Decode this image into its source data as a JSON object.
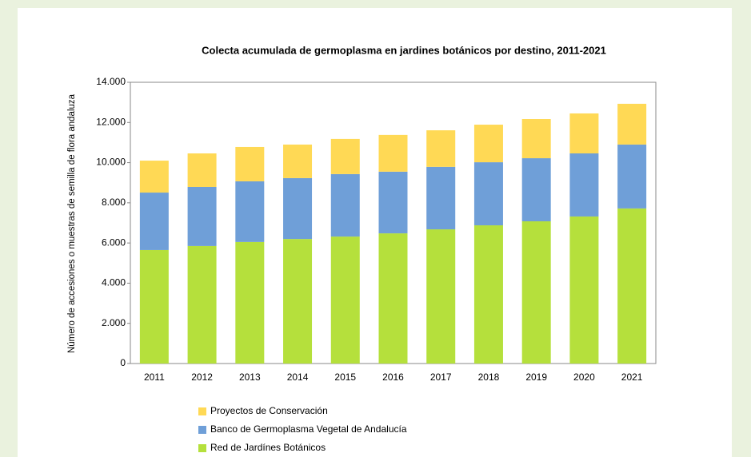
{
  "chart_data": {
    "type": "stacked-bar",
    "title": "Colecta acumulada de germoplasma en jardines botánicos por destino, 2011-2021",
    "y_label": "Número de accesiones o muestras de semilla de flora andaluza",
    "categories": [
      "2011",
      "2012",
      "2013",
      "2014",
      "2015",
      "2016",
      "2017",
      "2018",
      "2019",
      "2020",
      "2021"
    ],
    "series": [
      {
        "name": "Proyectos de Conservación",
        "color": "#ffd955",
        "values": [
          1590,
          1670,
          1710,
          1670,
          1750,
          1830,
          1820,
          1870,
          1950,
          1990,
          2030
        ]
      },
      {
        "name": "Banco de Germoplasma Vegetal de Andalucía",
        "color": "#6f9fd8",
        "values": [
          2860,
          2940,
          3020,
          3030,
          3110,
          3070,
          3110,
          3140,
          3140,
          3140,
          3180
        ]
      },
      {
        "name": "Red de Jardínes Botánicos",
        "color": "#b5e03c",
        "values": [
          5650,
          5850,
          6050,
          6200,
          6320,
          6480,
          6680,
          6880,
          7080,
          7320,
          7720
        ]
      }
    ],
    "ylim": [
      0,
      14000
    ],
    "yticks": [
      0,
      {
        "value": 2000,
        "label": "2.000"
      },
      {
        "value": 4000,
        "label": "4.000"
      },
      {
        "value": 6000,
        "label": "6.000"
      },
      {
        "value": 8000,
        "label": "8.000"
      },
      {
        "value": 10000,
        "label": "10.000"
      },
      {
        "value": 12000,
        "label": "12.000"
      },
      {
        "value": 14000,
        "label": "14.000"
      }
    ],
    "grid": false
  }
}
